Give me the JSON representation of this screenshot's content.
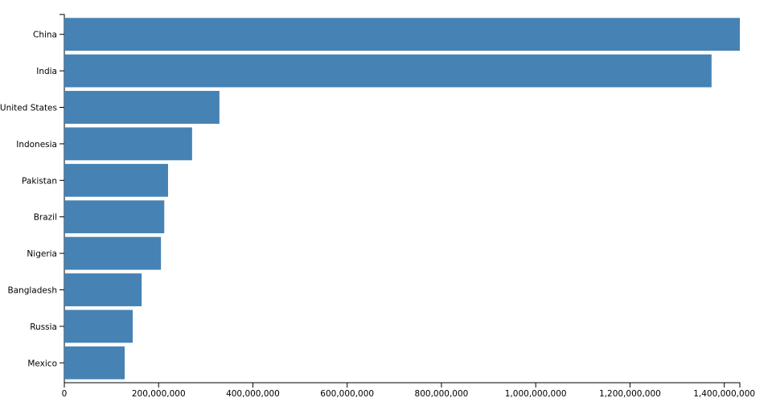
{
  "chart_data": {
    "type": "bar",
    "orientation": "horizontal",
    "categories": [
      "China",
      "India",
      "United States",
      "Indonesia",
      "Pakistan",
      "Brazil",
      "Nigeria",
      "Bangladesh",
      "Russia",
      "Mexico"
    ],
    "values": [
      1433000000,
      1373000000,
      329000000,
      271000000,
      220000000,
      212000000,
      205000000,
      164000000,
      145000000,
      128000000
    ],
    "color": "#4682b4",
    "xlim": [
      0,
      1433000000
    ],
    "xticks": [
      0,
      {
        "value": 200000000,
        "label": "200,000,000"
      },
      {
        "value": 400000000,
        "label": "400,000,000"
      },
      {
        "value": 600000000,
        "label": "600,000,000"
      },
      {
        "value": 800000000,
        "label": "800,000,000"
      },
      {
        "value": 1000000000,
        "label": "1,000,000,000"
      },
      {
        "value": 1200000000,
        "label": "1,200,000,000"
      },
      {
        "value": 1400000000,
        "label": "1,400,000,000"
      }
    ],
    "grid": false
  }
}
